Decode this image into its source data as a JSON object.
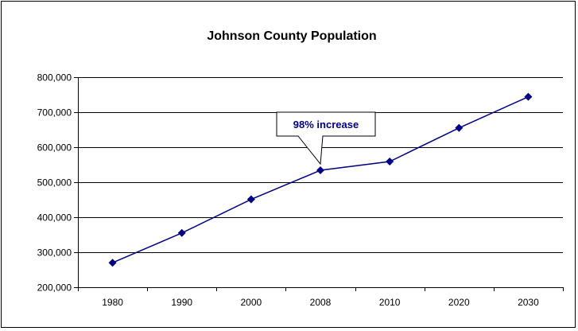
{
  "chart_data": {
    "type": "line",
    "title": "Johnson County Population",
    "xlabel": "",
    "ylabel": "",
    "categories": [
      "1980",
      "1990",
      "2000",
      "2008",
      "2010",
      "2020",
      "2030"
    ],
    "series": [
      {
        "values": [
          270000,
          355000,
          451000,
          534000,
          559000,
          655000,
          744000
        ]
      }
    ],
    "ylim": [
      200000,
      800000
    ],
    "y_ticks": [
      "200,000",
      "300,000",
      "400,000",
      "500,000",
      "600,000",
      "700,000",
      "800,000"
    ],
    "grid": "horizontal",
    "annotation": {
      "text": "98% increase",
      "category": "2008"
    },
    "colors": {
      "series": "#000080",
      "grid": "#000000",
      "axis": "#000000"
    }
  }
}
